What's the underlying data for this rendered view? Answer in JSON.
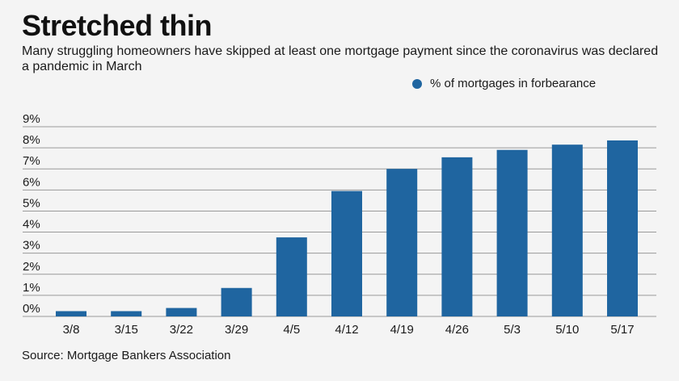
{
  "title": "Stretched thin",
  "subtitle": "Many struggling homeowners have skipped at least one mortgage payment since the coronavirus was declared a pandemic in March",
  "source": "Source: Mortgage Bankers Association",
  "colors": {
    "bar": "#1f65a0",
    "grid": "#9a9a9a",
    "background": "#f4f4f4"
  },
  "chart_data": {
    "type": "bar",
    "title": "Stretched thin",
    "xlabel": "",
    "ylabel": "",
    "categories": [
      "3/8",
      "3/15",
      "3/22",
      "3/29",
      "4/5",
      "4/12",
      "4/19",
      "4/26",
      "5/3",
      "5/10",
      "5/17"
    ],
    "series": [
      {
        "name": "% of mortgages in forbearance",
        "values": [
          0.25,
          0.25,
          0.4,
          1.35,
          3.75,
          5.95,
          7.0,
          7.55,
          7.9,
          8.15,
          8.35
        ]
      }
    ],
    "ylim": [
      0,
      9
    ],
    "yticks": [
      0,
      1,
      2,
      3,
      4,
      5,
      6,
      7,
      8,
      9
    ],
    "ytick_labels": [
      "0%",
      "1%",
      "2%",
      "3%",
      "4%",
      "5%",
      "6%",
      "7%",
      "8%",
      "9%"
    ],
    "grid": true,
    "legend_position": "top-right"
  }
}
